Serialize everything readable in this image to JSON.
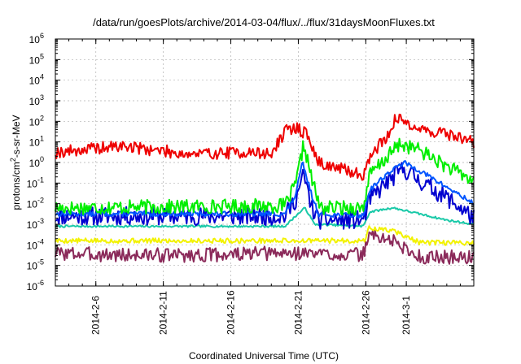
{
  "chart_data": {
    "type": "line",
    "title": "/data/run/goesPlots/archive/2014-03-04/flux/../flux/31daysMoonFluxes.txt",
    "xlabel": "Coordinated Universal Time (UTC)",
    "ylabel": "protons/cm2-s-sr-MeV",
    "ylabel_parts": {
      "pre": "protons/cm",
      "sup": "2",
      "post": "-s-sr-MeV"
    },
    "yscale": "log",
    "ylim_exp": [
      -6,
      6
    ],
    "ytick_base": "10",
    "ytick_exponents": [
      "-6",
      "-5",
      "-4",
      "-3",
      "-2",
      "-1",
      "0",
      "1",
      "2",
      "3",
      "4",
      "5",
      "6"
    ],
    "xlim_day": [
      0,
      31
    ],
    "xticks": [
      {
        "day": 3,
        "label": "2014-2-6"
      },
      {
        "day": 8,
        "label": "2014-2-11"
      },
      {
        "day": 13,
        "label": "2014-2-16"
      },
      {
        "day": 18,
        "label": "2014-2-21"
      },
      {
        "day": 23,
        "label": "2014-2-26"
      },
      {
        "day": 26,
        "label": "2014-3-1"
      }
    ],
    "grid": true,
    "legend": "none",
    "series": [
      {
        "color": "#8b2a5a",
        "knots": [
          [
            0,
            -4.4
          ],
          [
            5,
            -4.5
          ],
          [
            10,
            -4.5
          ],
          [
            18,
            -4.4
          ],
          [
            22.8,
            -4.5
          ],
          [
            23.2,
            -3.5
          ],
          [
            25,
            -3.8
          ],
          [
            26.2,
            -4.3
          ],
          [
            27,
            -4.6
          ],
          [
            31,
            -4.6
          ]
        ],
        "noise": 0.35,
        "seed": 3
      },
      {
        "color": "#f2f200",
        "knots": [
          [
            0,
            -3.8
          ],
          [
            18,
            -3.8
          ],
          [
            22.9,
            -3.8
          ],
          [
            23.2,
            -3.2
          ],
          [
            25,
            -3.3
          ],
          [
            26,
            -3.6
          ],
          [
            27,
            -3.9
          ],
          [
            31,
            -3.9
          ]
        ],
        "noise": 0.12,
        "seed": 5
      },
      {
        "color": "#19c9a8",
        "knots": [
          [
            0,
            -3.1
          ],
          [
            10,
            -3.1
          ],
          [
            17,
            -3.1
          ],
          [
            17.8,
            -2.6
          ],
          [
            18.5,
            -2.2
          ],
          [
            19.2,
            -3
          ],
          [
            22.8,
            -3.1
          ],
          [
            23.3,
            -2.4
          ],
          [
            25,
            -2.2
          ],
          [
            27,
            -2.5
          ],
          [
            29,
            -2.8
          ],
          [
            31,
            -3
          ]
        ],
        "noise": 0.05,
        "seed": 7
      },
      {
        "color": "#0000d0",
        "knots": [
          [
            0,
            -2.6
          ],
          [
            17,
            -2.6
          ],
          [
            17.8,
            -1.8
          ],
          [
            18.4,
            -0.6
          ],
          [
            19,
            -2.2
          ],
          [
            19.5,
            -2.8
          ],
          [
            22.8,
            -2.8
          ],
          [
            23.3,
            -1.8
          ],
          [
            24.5,
            -1
          ],
          [
            25.8,
            -0.3
          ],
          [
            27,
            -0.9
          ],
          [
            29,
            -1.7
          ],
          [
            31,
            -2.7
          ]
        ],
        "noise": 0.45,
        "seed": 11
      },
      {
        "color": "#0055ff",
        "knots": [
          [
            0,
            -2.5
          ],
          [
            17,
            -2.5
          ],
          [
            17.8,
            -1.6
          ],
          [
            18.3,
            0
          ],
          [
            19,
            -1.6
          ],
          [
            19.5,
            -2.5
          ],
          [
            22.8,
            -2.6
          ],
          [
            23.3,
            -1.3
          ],
          [
            24.5,
            -0.6
          ],
          [
            25.8,
            0
          ],
          [
            27,
            -0.4
          ],
          [
            29,
            -1.2
          ],
          [
            31,
            -2
          ]
        ],
        "noise": 0.12,
        "seed": 13
      },
      {
        "color": "#00ee00",
        "knots": [
          [
            0,
            -2.2
          ],
          [
            17,
            -2.1
          ],
          [
            17.8,
            -1.1
          ],
          [
            18.4,
            0.9
          ],
          [
            19,
            -0.8
          ],
          [
            19.6,
            -2.2
          ],
          [
            22.8,
            -2.2
          ],
          [
            23.3,
            -0.6
          ],
          [
            24.5,
            0.2
          ],
          [
            25.5,
            0.9
          ],
          [
            27,
            0.6
          ],
          [
            29,
            -0.2
          ],
          [
            31,
            -0.9
          ]
        ],
        "noise": 0.35,
        "seed": 17
      },
      {
        "color": "#ee0000",
        "knots": [
          [
            0,
            0.5
          ],
          [
            5,
            0.8
          ],
          [
            10,
            0.4
          ],
          [
            14,
            0.5
          ],
          [
            16,
            0.4
          ],
          [
            17,
            1.5
          ],
          [
            17.8,
            1.7
          ],
          [
            18.6,
            1.4
          ],
          [
            19.5,
            0
          ],
          [
            21,
            -0.3
          ],
          [
            22.8,
            -0.6
          ],
          [
            23.5,
            0.5
          ],
          [
            24.5,
            1.2
          ],
          [
            25.2,
            2.1
          ],
          [
            26,
            2
          ],
          [
            27,
            1.6
          ],
          [
            29,
            1.4
          ],
          [
            31,
            1
          ]
        ],
        "noise": 0.3,
        "seed": 19
      }
    ]
  }
}
